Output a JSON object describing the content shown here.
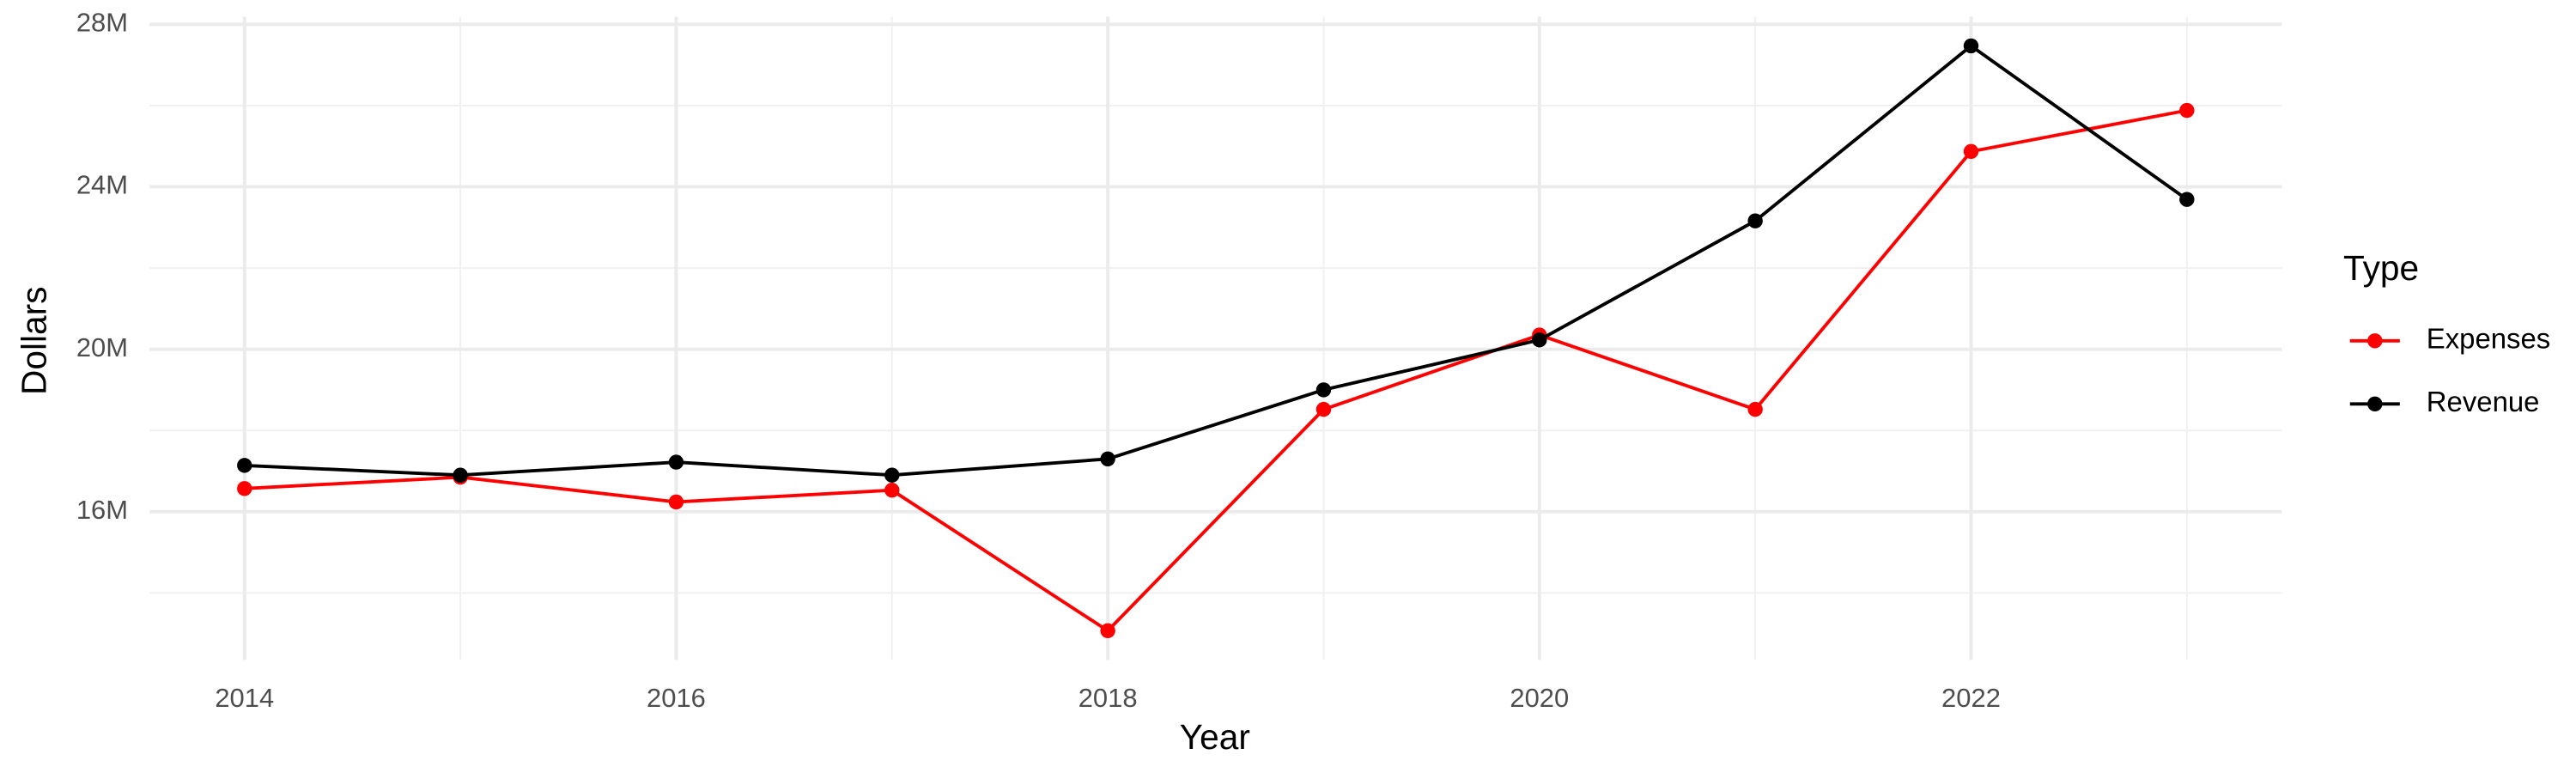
{
  "chart_data": {
    "type": "line",
    "x_label": "Year",
    "y_label": "Dollars",
    "x": [
      2014,
      2015,
      2016,
      2017,
      2018,
      2019,
      2020,
      2021,
      2022,
      2023
    ],
    "series": [
      {
        "name": "Expenses",
        "color": "#ff0000",
        "values": [
          16570000,
          16850000,
          16240000,
          16530000,
          13070000,
          18520000,
          20350000,
          18520000,
          24870000,
          25880000
        ]
      },
      {
        "name": "Revenue",
        "color": "#000000",
        "values": [
          17140000,
          16900000,
          17220000,
          16900000,
          17300000,
          19000000,
          20230000,
          23160000,
          27470000,
          23690000
        ]
      }
    ],
    "xlim": [
      2013.56,
      2023.44
    ],
    "xticks": [
      2014,
      2016,
      2018,
      2020,
      2022
    ],
    "ylim": [
      12350000,
      28190000
    ],
    "yticks": [
      {
        "value": 16000000,
        "label": "16M"
      },
      {
        "value": 20000000,
        "label": "20M"
      },
      {
        "value": 24000000,
        "label": "24M"
      },
      {
        "value": 28000000,
        "label": "28M"
      }
    ],
    "grid": true,
    "legend_title": "Type",
    "legend_position": "right"
  }
}
